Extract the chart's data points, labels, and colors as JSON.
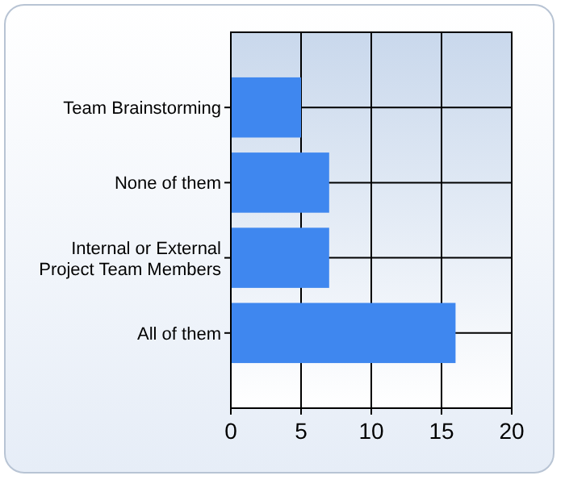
{
  "chart_data": {
    "type": "bar",
    "orientation": "horizontal",
    "categories": [
      "Team Brainstorming",
      "None of them",
      "Internal or External\nProject Team Members",
      "All of them"
    ],
    "values": [
      5,
      7,
      7,
      16
    ],
    "color": "#3f87ef",
    "xlim": [
      0,
      20
    ],
    "xticks": [
      0,
      5,
      10,
      15,
      20
    ],
    "grid": true
  }
}
